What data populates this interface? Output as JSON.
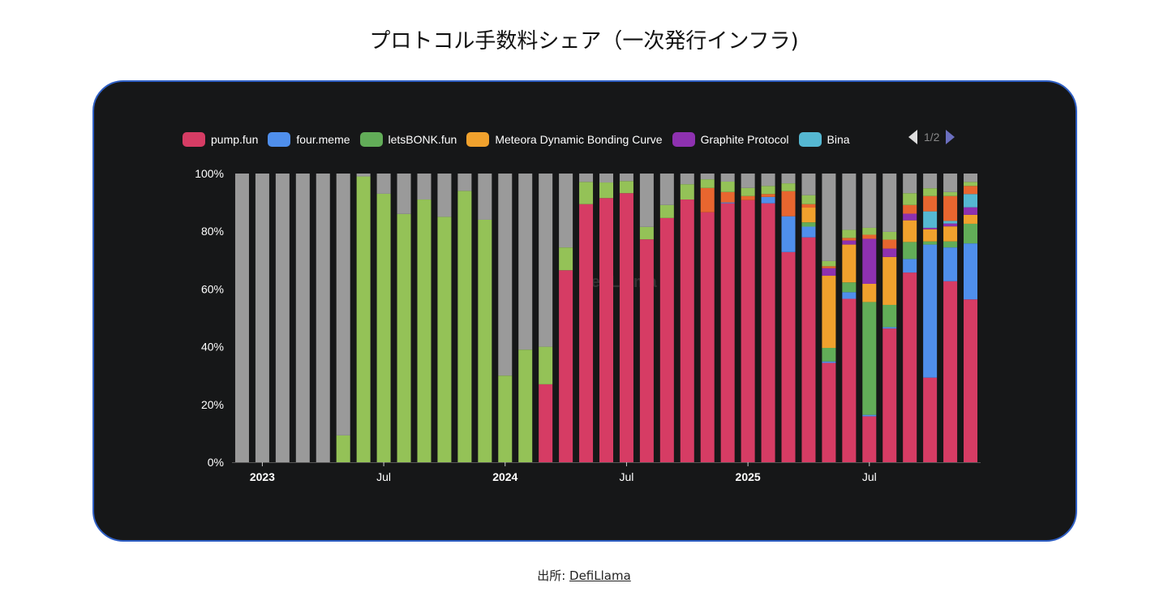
{
  "title": "プロトコル手数料シェア（一次発行インフラ)",
  "legend": {
    "items": [
      {
        "label": "pump.fun",
        "color": "#d63c64"
      },
      {
        "label": "four.meme",
        "color": "#4f8fec"
      },
      {
        "label": "letsBONK.fun",
        "color": "#62ad58"
      },
      {
        "label": "Meteora Dynamic Bonding Curve",
        "color": "#f0a12d"
      },
      {
        "label": "Graphite Protocol",
        "color": "#8e31b0"
      },
      {
        "label": "Bina",
        "color": "#55b8d2"
      }
    ],
    "page": "1/2",
    "prev_icon": "triangle-left-icon",
    "next_icon": "triangle-right-icon"
  },
  "watermark": "DefiLlama",
  "footer": {
    "prefix": "出所: ",
    "link": "DefiLlama"
  },
  "chart_data": {
    "type": "bar",
    "stacked": true,
    "normalized": true,
    "ylim": [
      0,
      100
    ],
    "y_ticks": [
      "0%",
      "20%",
      "40%",
      "60%",
      "80%",
      "100%"
    ],
    "x_ticks": [
      {
        "label": "2023",
        "index": 1
      },
      {
        "label": "Jul",
        "index": 7
      },
      {
        "label": "2024",
        "index": 13
      },
      {
        "label": "Jul",
        "index": 19
      },
      {
        "label": "2025",
        "index": 25
      },
      {
        "label": "Jul",
        "index": 31
      }
    ],
    "categories": [
      "2022-12",
      "2023-01",
      "2023-02",
      "2023-03",
      "2023-04",
      "2023-05",
      "2023-06",
      "2023-07",
      "2023-08",
      "2023-09",
      "2023-10",
      "2023-11",
      "2023-12",
      "2024-01",
      "2024-02",
      "2024-03",
      "2024-04",
      "2024-05",
      "2024-06",
      "2024-07",
      "2024-08",
      "2024-09",
      "2024-10",
      "2024-11",
      "2024-12",
      "2025-01",
      "2025-02",
      "2025-03",
      "2025-04",
      "2025-05",
      "2025-06",
      "2025-07",
      "2025-08",
      "2025-09",
      "2025-10",
      "2025-11",
      "2025-12"
    ],
    "series": [
      {
        "name": "pump.fun",
        "color": "#d63c64",
        "values": [
          0,
          0,
          0,
          0,
          0,
          0,
          0,
          0,
          0,
          0,
          0,
          0,
          0,
          0,
          0,
          27,
          66.5,
          89.4,
          91.5,
          93.2,
          77.2,
          84.6,
          91.0,
          86.6,
          89.7,
          90.8,
          89.7,
          72.8,
          77.9,
          34.4,
          56.6,
          15.9,
          46.3,
          65.7,
          29.3,
          62.7,
          56.4
        ]
      },
      {
        "name": "four.meme",
        "color": "#4f8fec",
        "values": [
          0,
          0,
          0,
          0,
          0,
          0,
          0,
          0,
          0,
          0,
          0,
          0,
          0,
          0,
          0,
          0,
          0,
          0,
          0,
          0,
          0,
          0,
          0,
          0,
          0.3,
          0,
          2.2,
          12.4,
          3.7,
          0.5,
          2.3,
          0.5,
          0.5,
          4.7,
          46.1,
          11.7,
          19.4
        ]
      },
      {
        "name": "letsBONK.fun",
        "color": "#62ad58",
        "values": [
          0,
          0,
          0,
          0,
          0,
          0,
          0,
          0,
          0,
          0,
          0,
          0,
          0,
          0,
          0,
          0,
          0,
          0,
          0,
          0,
          0,
          0,
          0,
          0,
          0,
          0,
          0,
          0,
          1.5,
          4.7,
          3.4,
          39.1,
          7.7,
          5.9,
          1.1,
          2.1,
          6.8
        ]
      },
      {
        "name": "Meteora Dynamic Bonding Curve",
        "color": "#f0a12d",
        "values": [
          0,
          0,
          0,
          0,
          0,
          0,
          0,
          0,
          0,
          0,
          0,
          0,
          0,
          0,
          0,
          0,
          0,
          0,
          0,
          0,
          0,
          0,
          0,
          0,
          0,
          0,
          0,
          0,
          5.1,
          25.0,
          13.1,
          6.3,
          16.6,
          7.5,
          4.2,
          5.2,
          3.1
        ]
      },
      {
        "name": "Graphite Protocol",
        "color": "#8e31b0",
        "values": [
          0,
          0,
          0,
          0,
          0,
          0,
          0,
          0,
          0,
          0,
          0,
          0,
          0,
          0,
          0,
          0,
          0,
          0,
          0,
          0,
          0,
          0,
          0,
          0,
          0,
          0,
          0,
          0,
          0,
          2.6,
          1.4,
          15.6,
          2.9,
          2.3,
          0.5,
          1.0,
          2.6
        ]
      },
      {
        "name": "Bina",
        "color": "#55b8d2",
        "values": [
          0,
          0,
          0,
          0,
          0,
          0,
          0,
          0,
          0,
          0,
          0,
          0,
          0,
          0,
          0,
          0,
          0,
          0,
          0,
          0,
          0,
          0,
          0,
          0,
          0,
          0,
          0,
          0,
          0,
          0,
          0,
          0,
          0,
          0,
          5.7,
          0.9,
          4.6
        ]
      },
      {
        "color": "#e8662f",
        "values": [
          0,
          0,
          0,
          0,
          0,
          0,
          0,
          0,
          0,
          0,
          0,
          0,
          0,
          0,
          0,
          0,
          0,
          0,
          0,
          0,
          0,
          0,
          0,
          8.4,
          3.6,
          1.4,
          1.0,
          8.7,
          1.2,
          0.7,
          0.9,
          1.4,
          3.1,
          3.0,
          5.3,
          8.6,
          2.8
        ]
      },
      {
        "color": "#94c257",
        "values": [
          0,
          0,
          0,
          0,
          0,
          9.3,
          99,
          93,
          86,
          91,
          85,
          94,
          84,
          30,
          39,
          13,
          7.9,
          7.7,
          5.4,
          4.2,
          4.3,
          4.5,
          5.3,
          3.0,
          3.6,
          2.8,
          2.8,
          2.7,
          3.1,
          1.8,
          2.8,
          2.4,
          2.7,
          4.1,
          2.7,
          1.4,
          1.4
        ]
      },
      {
        "color": "#9a9a9a",
        "values": [
          100,
          100,
          100,
          100,
          100,
          90.7,
          1,
          7,
          14,
          9,
          15,
          6,
          16,
          70,
          61,
          60,
          25.6,
          2.9,
          3.1,
          2.6,
          18.5,
          10.9,
          3.7,
          2.0,
          2.8,
          5.0,
          4.3,
          3.4,
          7.5,
          30.3,
          19.5,
          18.8,
          20.2,
          6.8,
          5.1,
          6.4,
          2.9
        ]
      }
    ]
  }
}
